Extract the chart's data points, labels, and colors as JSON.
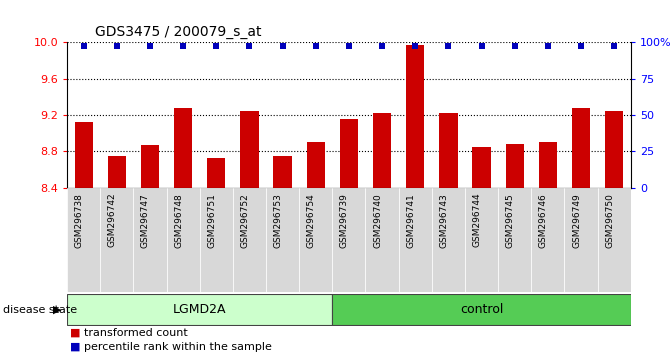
{
  "title": "GDS3475 / 200079_s_at",
  "samples": [
    "GSM296738",
    "GSM296742",
    "GSM296747",
    "GSM296748",
    "GSM296751",
    "GSM296752",
    "GSM296753",
    "GSM296754",
    "GSM296739",
    "GSM296740",
    "GSM296741",
    "GSM296743",
    "GSM296744",
    "GSM296745",
    "GSM296746",
    "GSM296749",
    "GSM296750"
  ],
  "bar_values": [
    9.12,
    8.75,
    8.87,
    9.28,
    8.73,
    9.25,
    8.75,
    8.9,
    9.16,
    9.22,
    9.97,
    9.22,
    8.85,
    8.88,
    8.9,
    9.28,
    9.24
  ],
  "groups": [
    {
      "label": "LGMD2A",
      "start": 0,
      "end": 8,
      "color": "#ccffcc"
    },
    {
      "label": "control",
      "start": 8,
      "end": 17,
      "color": "#55cc55"
    }
  ],
  "ylim_left": [
    8.4,
    10.0
  ],
  "yticks_left": [
    8.4,
    8.8,
    9.2,
    9.6,
    10.0
  ],
  "ylim_right": [
    0,
    100
  ],
  "yticks_right": [
    0,
    25,
    50,
    75,
    100
  ],
  "yticklabels_right": [
    "0",
    "25",
    "50",
    "75",
    "100%"
  ],
  "bar_color": "#cc0000",
  "percentile_color": "#0000bb",
  "disease_state_label": "disease state",
  "legend_items": [
    "transformed count",
    "percentile rank within the sample"
  ],
  "bar_width": 0.55
}
